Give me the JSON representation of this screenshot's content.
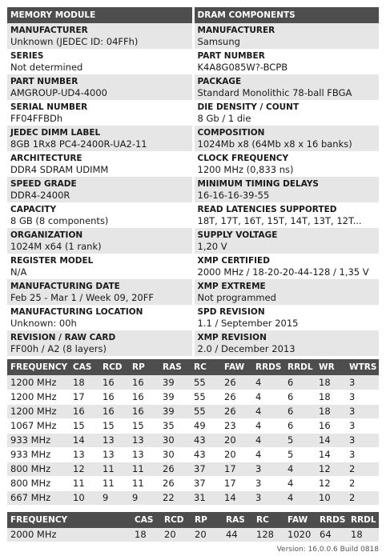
{
  "left_title": "MEMORY MODULE",
  "right_title": "DRAM COMPONENTS",
  "left": [
    {
      "label": "MANUFACTURER",
      "value": "Unknown (JEDEC ID: 04FFh)"
    },
    {
      "label": "SERIES",
      "value": "Not determined"
    },
    {
      "label": "PART NUMBER",
      "value": "AMGROUP-UD4-4000"
    },
    {
      "label": "SERIAL NUMBER",
      "value": "FF04FFBDh"
    },
    {
      "label": "JEDEC DIMM LABEL",
      "value": "8GB 1Rx8 PC4-2400R-UA2-11"
    },
    {
      "label": "ARCHITECTURE",
      "value": "DDR4 SDRAM UDIMM"
    },
    {
      "label": "SPEED GRADE",
      "value": "DDR4-2400R"
    },
    {
      "label": "CAPACITY",
      "value": "8 GB (8 components)"
    },
    {
      "label": "ORGANIZATION",
      "value": "1024M x64 (1 rank)"
    },
    {
      "label": "REGISTER MODEL",
      "value": "N/A"
    },
    {
      "label": "MANUFACTURING DATE",
      "value": "Feb 25 - Mar 1 / Week 09, 20FF"
    },
    {
      "label": "MANUFACTURING LOCATION",
      "value": "Unknown: 00h"
    },
    {
      "label": "REVISION / RAW CARD",
      "value": "FF00h / A2 (8 layers)"
    }
  ],
  "right": [
    {
      "label": "MANUFACTURER",
      "value": "Samsung"
    },
    {
      "label": "PART NUMBER",
      "value": "K4A8G085W?-BCPB"
    },
    {
      "label": "PACKAGE",
      "value": "Standard Monolithic 78-ball FBGA"
    },
    {
      "label": "DIE DENSITY / COUNT",
      "value": "8 Gb / 1 die"
    },
    {
      "label": "COMPOSITION",
      "value": "1024Mb x8 (64Mb x8 x 16 banks)"
    },
    {
      "label": "CLOCK FREQUENCY",
      "value": "1200 MHz (0,833 ns)"
    },
    {
      "label": "MINIMUM TIMING DELAYS",
      "value": "16-16-16-39-55"
    },
    {
      "label": "READ LATENCIES SUPPORTED",
      "value": "18T, 17T, 16T, 15T, 14T, 13T, 12T..."
    },
    {
      "label": "SUPPLY VOLTAGE",
      "value": "1,20 V"
    },
    {
      "label": "XMP CERTIFIED",
      "value": "2000 MHz / 18-20-20-44-128 / 1,35 V"
    },
    {
      "label": "XMP EXTREME",
      "value": "Not programmed"
    },
    {
      "label": "SPD REVISION",
      "value": "1.1 / September 2015"
    },
    {
      "label": "XMP REVISION",
      "value": "2.0 / December 2013"
    }
  ],
  "timing_headers": [
    "FREQUENCY",
    "CAS",
    "RCD",
    "RP",
    "RAS",
    "RC",
    "FAW",
    "RRDS",
    "RRDL",
    "WR",
    "WTRS"
  ],
  "timing_rows": [
    [
      "1200 MHz",
      "18",
      "16",
      "16",
      "39",
      "55",
      "26",
      "4",
      "6",
      "18",
      "3"
    ],
    [
      "1200 MHz",
      "17",
      "16",
      "16",
      "39",
      "55",
      "26",
      "4",
      "6",
      "18",
      "3"
    ],
    [
      "1200 MHz",
      "16",
      "16",
      "16",
      "39",
      "55",
      "26",
      "4",
      "6",
      "18",
      "3"
    ],
    [
      "1067 MHz",
      "15",
      "15",
      "15",
      "35",
      "49",
      "23",
      "4",
      "6",
      "16",
      "3"
    ],
    [
      "933 MHz",
      "14",
      "13",
      "13",
      "30",
      "43",
      "20",
      "4",
      "5",
      "14",
      "3"
    ],
    [
      "933 MHz",
      "13",
      "13",
      "13",
      "30",
      "43",
      "20",
      "4",
      "5",
      "14",
      "3"
    ],
    [
      "800 MHz",
      "12",
      "11",
      "11",
      "26",
      "37",
      "17",
      "3",
      "4",
      "12",
      "2"
    ],
    [
      "800 MHz",
      "11",
      "11",
      "11",
      "26",
      "37",
      "17",
      "3",
      "4",
      "12",
      "2"
    ],
    [
      "667 MHz",
      "10",
      "9",
      "9",
      "22",
      "31",
      "14",
      "3",
      "4",
      "10",
      "2"
    ]
  ],
  "xmp_headers": [
    "FREQUENCY",
    "CAS",
    "RCD",
    "RP",
    "RAS",
    "RC",
    "FAW",
    "RRDS",
    "RRDL"
  ],
  "xmp_rows": [
    [
      "2000 MHz",
      "18",
      "20",
      "20",
      "44",
      "128",
      "1020",
      "64",
      "18"
    ]
  ],
  "version": "Version: 16.0.0.6 Build 0818"
}
